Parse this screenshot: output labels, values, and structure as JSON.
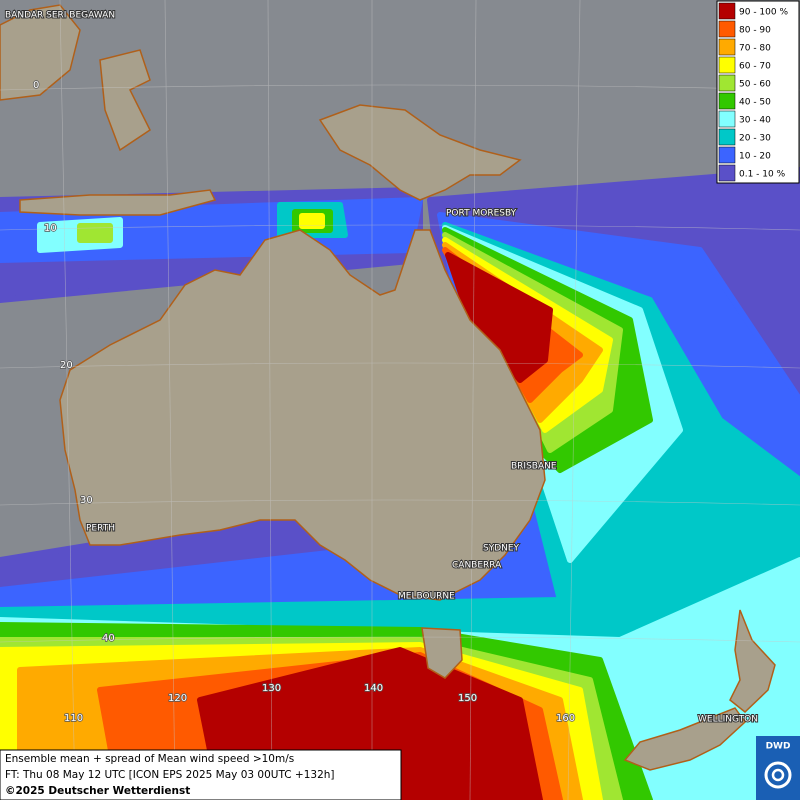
{
  "map": {
    "legend": [
      {
        "label": "90 - 100 %",
        "color": "#b40000"
      },
      {
        "label": "80 - 90",
        "color": "#ff5a00"
      },
      {
        "label": "70 - 80",
        "color": "#ffaa00"
      },
      {
        "label": "60 - 70",
        "color": "#ffff00"
      },
      {
        "label": "50 - 60",
        "color": "#a0e632"
      },
      {
        "label": "40 - 50",
        "color": "#32c800"
      },
      {
        "label": "30 - 40",
        "color": "#82ffff"
      },
      {
        "label": "20 - 30",
        "color": "#00c8c8"
      },
      {
        "label": "10 - 20",
        "color": "#3c64ff"
      },
      {
        "label": "0.1 - 10 %",
        "color": "#5a50c8"
      }
    ],
    "cities": [
      "BANDAR SERI BEGAWAN",
      "PORT MORESBY",
      "BRISBANE",
      "SYDNEY",
      "CANBERRA",
      "PERTH",
      "MELBOURNE",
      "WELLINGTON"
    ],
    "latitude_labels": [
      "0",
      "10",
      "20",
      "30",
      "40"
    ],
    "longitude_labels": [
      "110",
      "120",
      "130",
      "140",
      "150",
      "160"
    ],
    "info": [
      "Ensemble mean + spread of Mean wind speed >10m/s",
      "FT: Thu 08 May 12 UTC [ICON EPS 2025 May 03 00UTC +132h]",
      "©2025 Deutscher Wetterdienst"
    ],
    "logo": "DWD"
  }
}
